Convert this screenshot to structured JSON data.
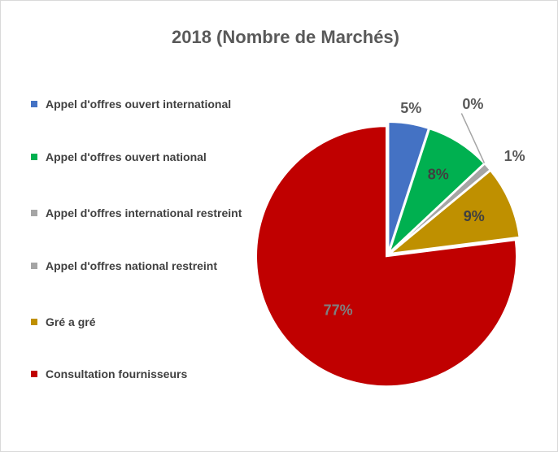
{
  "chart_data": {
    "type": "pie",
    "title": "2018 (Nombre de Marchés)",
    "categories": [
      "Appel d'offres ouvert international",
      "Appel d'offres ouvert national",
      "Appel d'offres international restreint",
      "Appel d'offres national restreint",
      "Gré a gré",
      "Consultation fournisseurs"
    ],
    "values": [
      5,
      8,
      0,
      1,
      9,
      77
    ],
    "value_labels": [
      "5%",
      "8%",
      "0%",
      "1%",
      "9%",
      "77%"
    ],
    "colors": [
      "#4472c4",
      "#00b050",
      "#a5a5a5",
      "#a5a5a5",
      "#bf9000",
      "#c00000"
    ],
    "legend": "left"
  }
}
